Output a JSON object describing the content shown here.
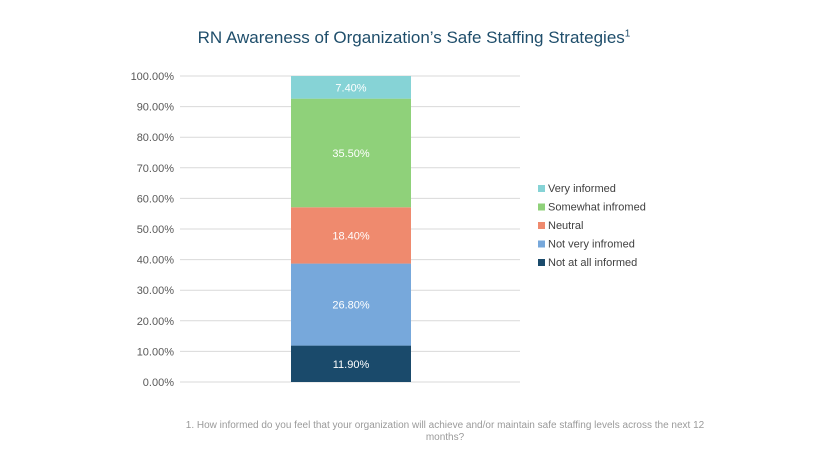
{
  "chart_data": {
    "type": "bar",
    "stacked": true,
    "title": "RN Awareness of Organization’s Safe Staffing Strategies",
    "title_superscript": "1",
    "categories": [
      ""
    ],
    "series": [
      {
        "name": "Not at all informed",
        "values": [
          11.9
        ],
        "label": "11.90%",
        "color": "#1a4a6b"
      },
      {
        "name": "Not very infromed",
        "values": [
          26.8
        ],
        "label": "26.80%",
        "color": "#77a8db"
      },
      {
        "name": "Neutral",
        "values": [
          18.4
        ],
        "label": "18.40%",
        "color": "#ef8a6e"
      },
      {
        "name": "Somewhat infromed",
        "values": [
          35.5
        ],
        "label": "35.50%",
        "color": "#8fd17a"
      },
      {
        "name": "Very informed",
        "values": [
          7.4
        ],
        "label": "7.40%",
        "color": "#86d3d6"
      }
    ],
    "ylim": [
      0,
      100
    ],
    "yticks": [
      "0.00%",
      "10.00%",
      "20.00%",
      "30.00%",
      "40.00%",
      "50.00%",
      "60.00%",
      "70.00%",
      "80.00%",
      "90.00%",
      "100.00%"
    ],
    "grid": true,
    "legend_position": "right",
    "footnote": "1. How informed do you feel that your organization will achieve and/or maintain safe staffing levels across the next 12 months?"
  }
}
